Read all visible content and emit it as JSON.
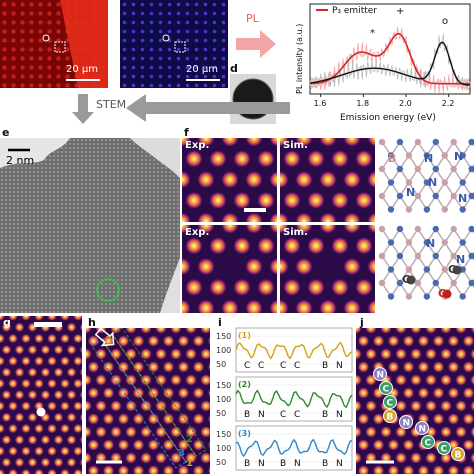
{
  "top": {
    "scale_bar_a": "20 μm",
    "scale_bar_b": "20 μm",
    "pl_arrow_label": "PL",
    "panel_d": "d",
    "stem_arrow_label": "STEM"
  },
  "pl_plot": {
    "legend": "P₃ emitter",
    "ylabel": "PL intensity (a.u.)",
    "xlabel": "Emission energy (eV)",
    "xticks": [
      "1.6",
      "1.8",
      "2.0",
      "2.2"
    ],
    "markers": [
      "*",
      "+",
      "o"
    ],
    "colors": {
      "red": "#d62728",
      "black": "#111111"
    }
  },
  "panel_e": {
    "letter": "e",
    "scale": "2 nm"
  },
  "panel_f": {
    "letter": "f",
    "exp": "Exp.",
    "sim": "Sim.",
    "atoms_top": [
      "B",
      "N",
      "N",
      "N",
      "N",
      "N"
    ],
    "atoms_bottom": [
      "N",
      "N",
      "C",
      "C",
      "O"
    ]
  },
  "panel_g": {
    "letter": "g"
  },
  "panel_h": {
    "letter": "h",
    "lines": [
      "1",
      "2",
      "3"
    ]
  },
  "panel_i": {
    "letter": "i",
    "rows": [
      {
        "tag": "(1)",
        "labels": [
          "C",
          "C",
          "C",
          "C",
          "B",
          "N"
        ],
        "color": "#d4a017",
        "ticks": [
          "150",
          "100",
          "50"
        ]
      },
      {
        "tag": "(2)",
        "labels": [
          "B",
          "N",
          "C",
          "C",
          "B",
          "N"
        ],
        "color": "#2e8b2e",
        "ticks": [
          "150",
          "100",
          "50"
        ]
      },
      {
        "tag": "(3)",
        "labels": [
          "B",
          "N",
          "B",
          "N",
          "B",
          "N"
        ],
        "color": "#2f86c8",
        "ticks": [
          "150",
          "100",
          "50"
        ]
      }
    ]
  },
  "panel_j": {
    "letter": "j",
    "atoms": [
      "N",
      "C",
      "C",
      "B",
      "N",
      "N",
      "C",
      "C",
      "B"
    ]
  }
}
